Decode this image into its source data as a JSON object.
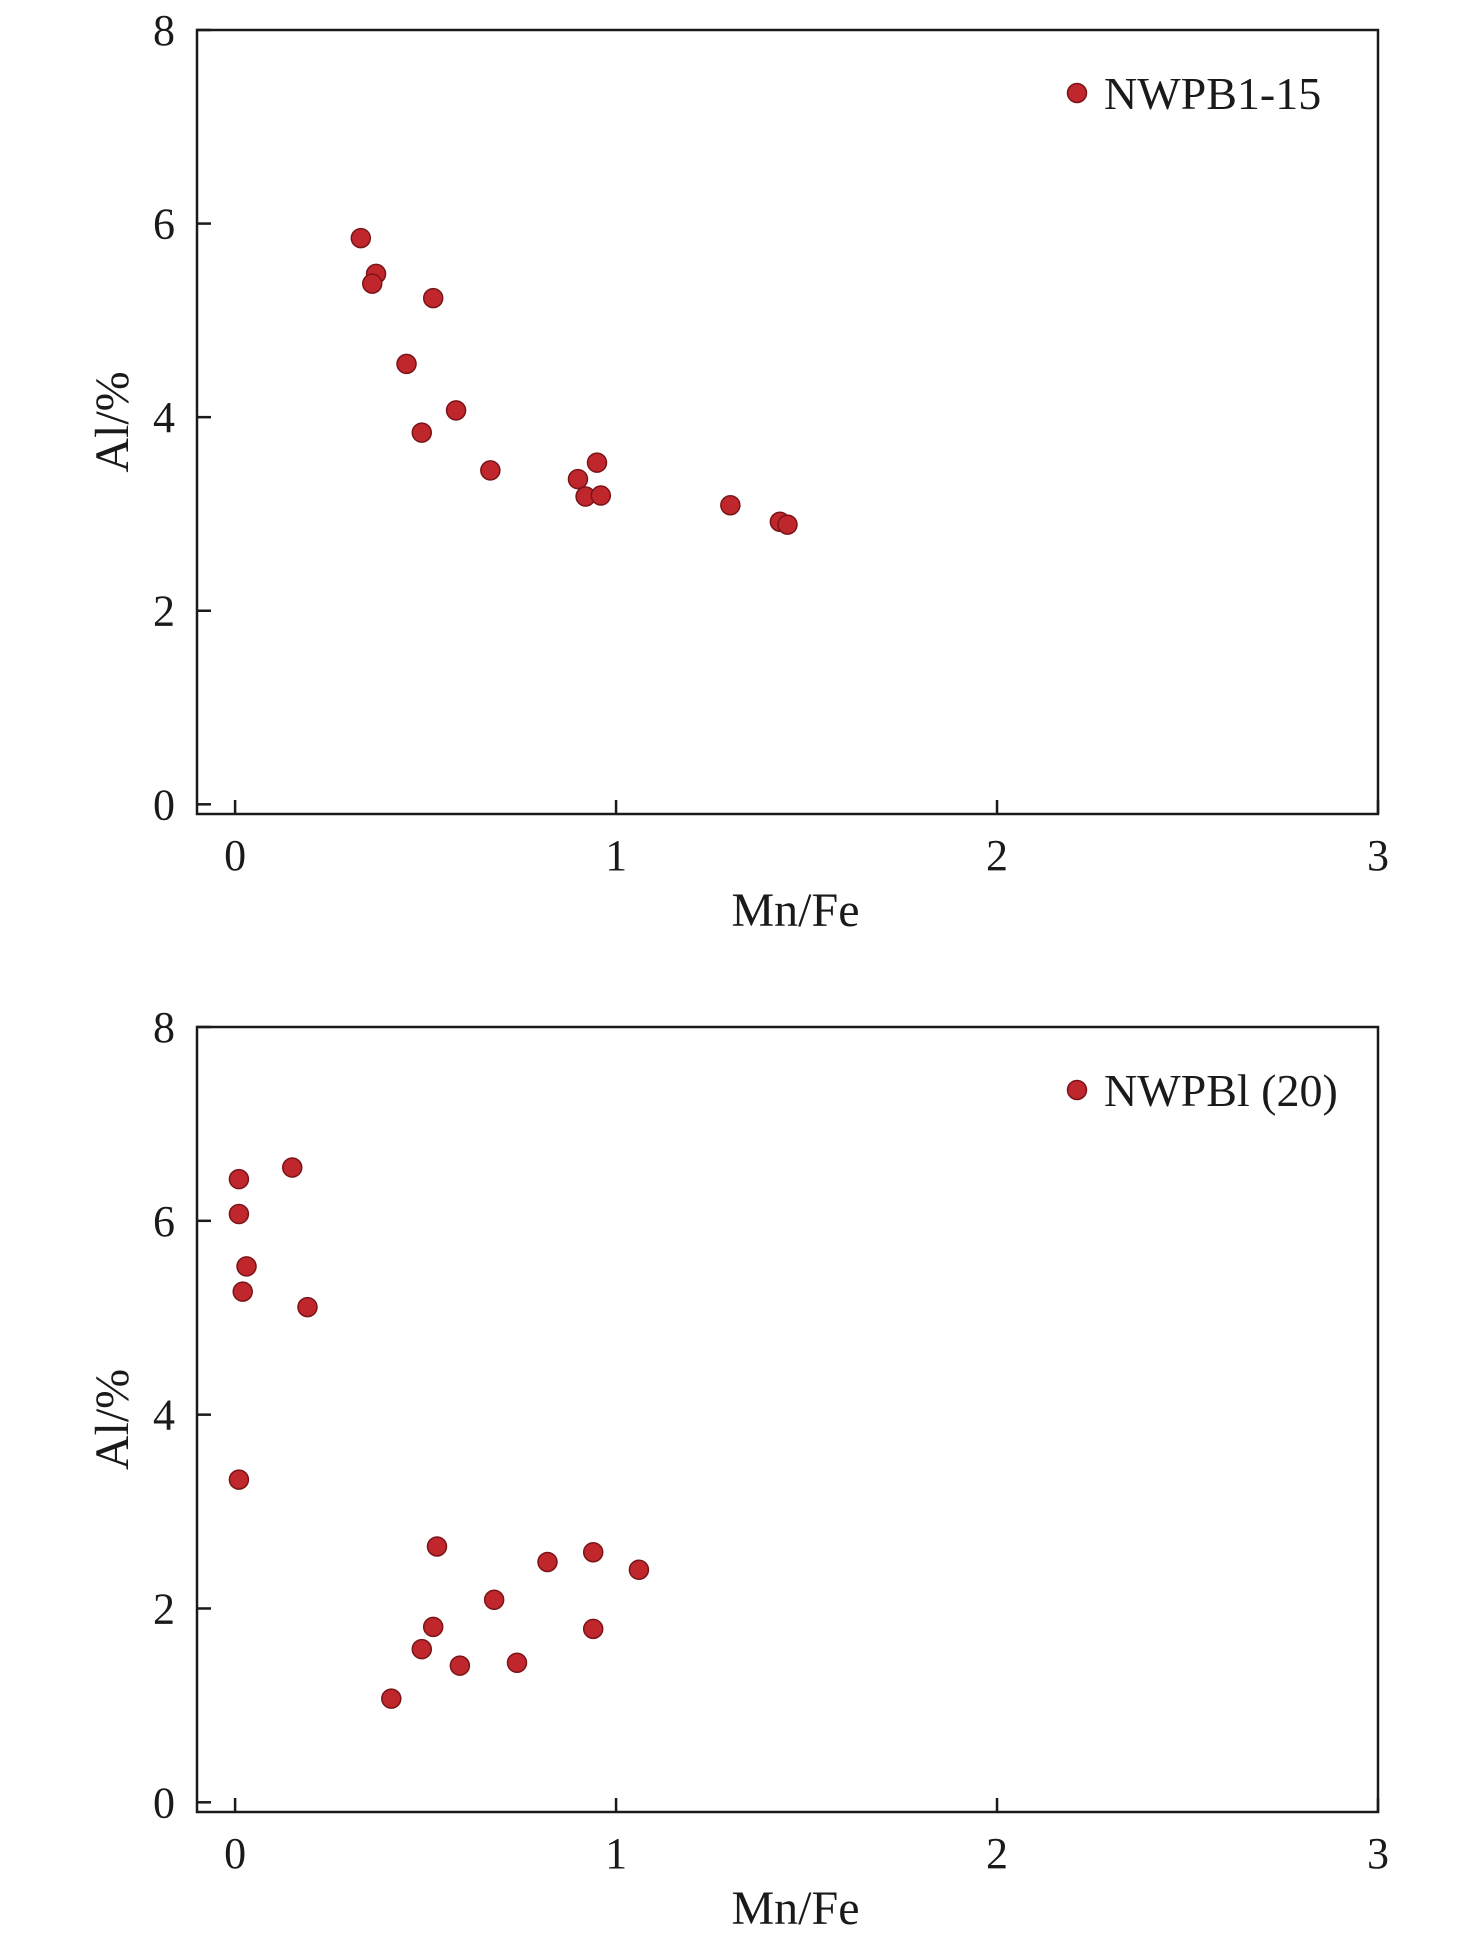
{
  "chart_data": [
    {
      "type": "scatter",
      "xlabel": "Mn/Fe",
      "ylabel": "Al/%",
      "xlim": [
        -0.1,
        3
      ],
      "ylim": [
        -0.1,
        8
      ],
      "xticks": [
        "0",
        "1",
        "2",
        "3"
      ],
      "yticks": [
        "0",
        "2",
        "4",
        "6",
        "8"
      ],
      "grid": false,
      "legend_position": "top-right",
      "marker_color": "#c0272d",
      "series": [
        {
          "name": "NWPB1-15",
          "points": [
            {
              "x": 0.33,
              "y": 5.85
            },
            {
              "x": 0.37,
              "y": 5.48
            },
            {
              "x": 0.36,
              "y": 5.38
            },
            {
              "x": 0.52,
              "y": 5.23
            },
            {
              "x": 0.45,
              "y": 4.55
            },
            {
              "x": 0.58,
              "y": 4.07
            },
            {
              "x": 0.49,
              "y": 3.84
            },
            {
              "x": 0.67,
              "y": 3.45
            },
            {
              "x": 0.9,
              "y": 3.36
            },
            {
              "x": 0.95,
              "y": 3.53
            },
            {
              "x": 0.92,
              "y": 3.18
            },
            {
              "x": 0.96,
              "y": 3.19
            },
            {
              "x": 1.3,
              "y": 3.09
            },
            {
              "x": 1.43,
              "y": 2.92
            },
            {
              "x": 1.45,
              "y": 2.89
            }
          ]
        }
      ]
    },
    {
      "type": "scatter",
      "xlabel": "Mn/Fe",
      "ylabel": "Al/%",
      "xlim": [
        -0.1,
        3
      ],
      "ylim": [
        -0.1,
        8
      ],
      "xticks": [
        "0",
        "1",
        "2",
        "3"
      ],
      "yticks": [
        "0",
        "2",
        "4",
        "6",
        "8"
      ],
      "grid": false,
      "legend_position": "top-right",
      "marker_color": "#c0272d",
      "series": [
        {
          "name": "NWPBl (20)",
          "points": [
            {
              "x": 0.01,
              "y": 6.43
            },
            {
              "x": 0.15,
              "y": 6.55
            },
            {
              "x": 0.01,
              "y": 6.07
            },
            {
              "x": 0.03,
              "y": 5.53
            },
            {
              "x": 0.02,
              "y": 5.27
            },
            {
              "x": 0.19,
              "y": 5.11
            },
            {
              "x": 0.01,
              "y": 3.33
            },
            {
              "x": 0.53,
              "y": 2.64
            },
            {
              "x": 0.82,
              "y": 2.48
            },
            {
              "x": 0.94,
              "y": 2.58
            },
            {
              "x": 1.06,
              "y": 2.4
            },
            {
              "x": 0.68,
              "y": 2.09
            },
            {
              "x": 0.52,
              "y": 1.81
            },
            {
              "x": 0.94,
              "y": 1.79
            },
            {
              "x": 0.49,
              "y": 1.58
            },
            {
              "x": 0.59,
              "y": 1.41
            },
            {
              "x": 0.74,
              "y": 1.44
            },
            {
              "x": 0.41,
              "y": 1.07
            }
          ]
        }
      ]
    }
  ]
}
